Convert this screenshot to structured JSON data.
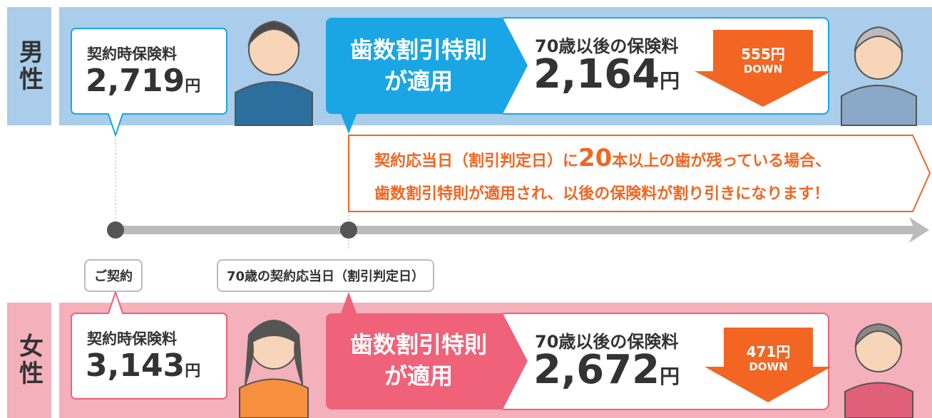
{
  "male": {
    "label": "男性",
    "initial": {
      "title": "契約時保険料",
      "amount": "2,719",
      "unit": "円"
    },
    "discount": {
      "line1": "歯数割引特則",
      "line2": "が適用"
    },
    "after": {
      "title": "70歳以後の保険料",
      "amount": "2,164",
      "unit": "円"
    },
    "arrow": {
      "amount": "555円",
      "label": "DOWN"
    }
  },
  "note": {
    "line1": {
      "before": "契約応当日（割引判定日）に",
      "number": "20",
      "after": "本以上の歯が残っている場合、"
    },
    "line2": "歯数割引特則が適用され、以後の保険料が割り引きになります！"
  },
  "timeline": {
    "start": "ご契約",
    "milestone": "70歳の契約応当日（割引判定日）"
  },
  "female": {
    "label": "女性",
    "initial": {
      "title": "契約時保険料",
      "amount": "3,143",
      "unit": "円"
    },
    "discount": {
      "line1": "歯数割引特則",
      "line2": "が適用"
    },
    "after": {
      "title": "70歳以後の保険料",
      "amount": "2,672",
      "unit": "円"
    },
    "arrow": {
      "amount": "471円",
      "label": "DOWN"
    }
  }
}
